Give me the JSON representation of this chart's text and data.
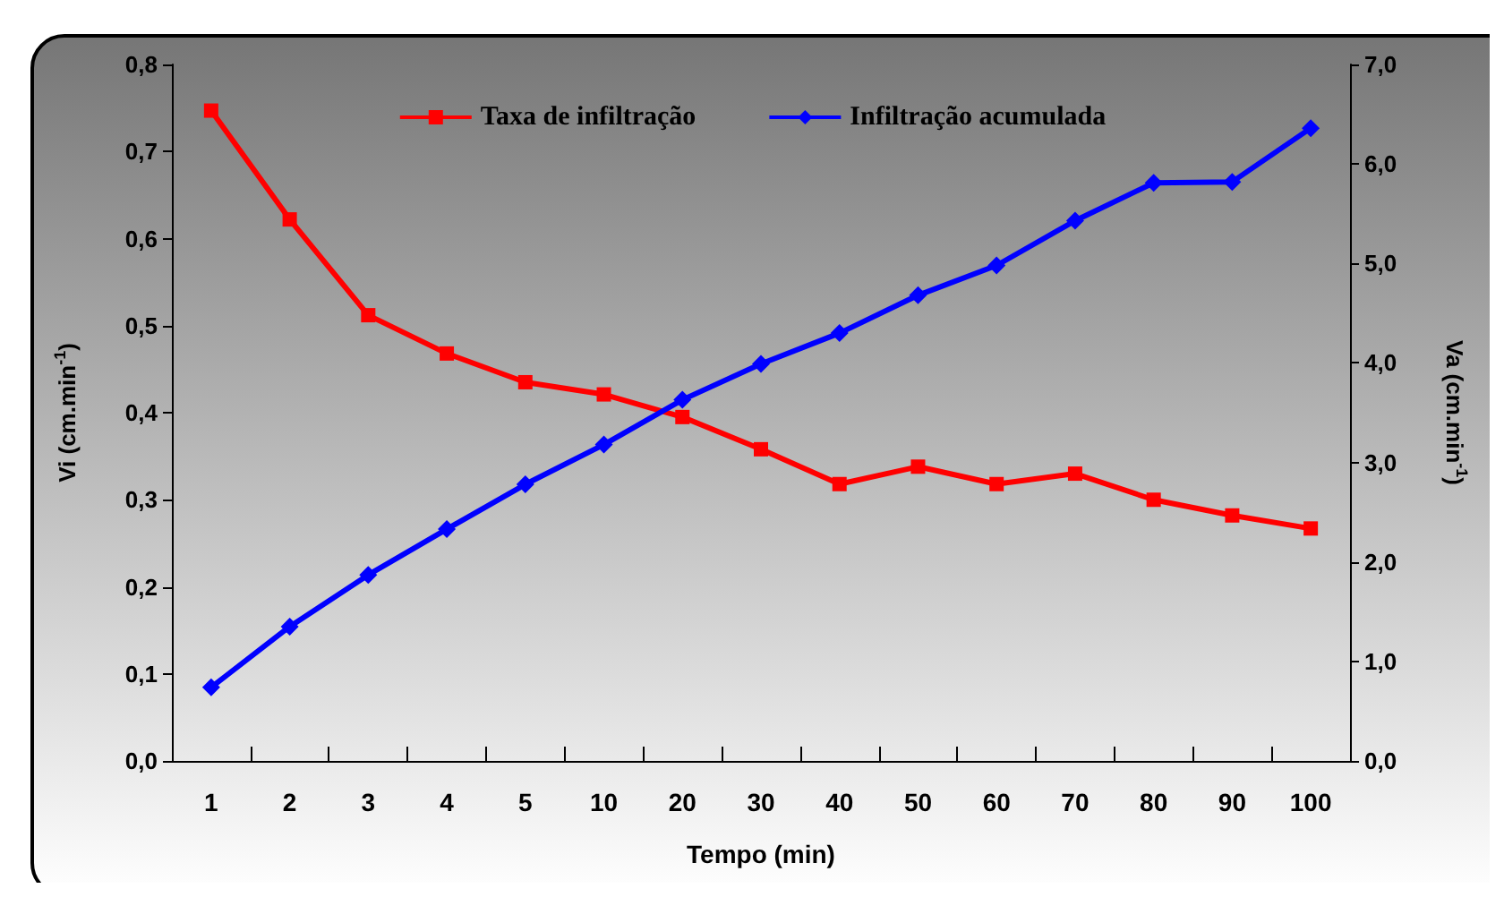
{
  "chart_data": {
    "type": "line",
    "xlabel": "Tempo (min)",
    "ylabel": "Vi (cm.min$^{-1}$)",
    "y2label": "Va (cm.min$^{-1}$)",
    "categories": [
      "1",
      "2",
      "3",
      "4",
      "5",
      "10",
      "20",
      "30",
      "40",
      "50",
      "60",
      "70",
      "80",
      "90",
      "100"
    ],
    "series": [
      {
        "name": "Taxa de infiltração",
        "color": "#ff0000",
        "marker": "square",
        "values": [
          0.747,
          0.622,
          0.512,
          0.468,
          0.435,
          0.421,
          0.395,
          0.358,
          0.318,
          0.338,
          0.318,
          0.33,
          0.3,
          0.282,
          0.267
        ]
      },
      {
        "name": "Infiltração acumulada",
        "color": "#0000ff",
        "marker": "diamond",
        "axis": "y2",
        "values": [
          0.74,
          1.35,
          1.87,
          2.33,
          2.78,
          3.18,
          3.63,
          3.99,
          4.3,
          4.68,
          4.98,
          5.43,
          5.81,
          5.82,
          6.36
        ]
      }
    ],
    "ylim": [
      0,
      0.8
    ],
    "yticks": [
      {
        "value": 0,
        "label": "0,0"
      },
      {
        "value": 0.1,
        "label": "0,1"
      },
      {
        "value": 0.2,
        "label": "0,2"
      },
      {
        "value": 0.3,
        "label": "0,3"
      },
      {
        "value": 0.4,
        "label": "0,4"
      },
      {
        "value": 0.5,
        "label": "0,5"
      },
      {
        "value": 0.6,
        "label": "0,6"
      },
      {
        "value": 0.7,
        "label": "0,7"
      },
      {
        "value": 0.8,
        "label": "0,8"
      }
    ],
    "y2lim": [
      0,
      7
    ],
    "y2ticks": [
      {
        "value": 0,
        "label": "0,0"
      },
      {
        "value": 1,
        "label": "1,0"
      },
      {
        "value": 2,
        "label": "2,0"
      },
      {
        "value": 3,
        "label": "3,0"
      },
      {
        "value": 4,
        "label": "4,0"
      },
      {
        "value": 5,
        "label": "5,0"
      },
      {
        "value": 6,
        "label": "6,0"
      },
      {
        "value": 7,
        "label": "7,0"
      }
    ],
    "grid": false,
    "legend": "top",
    "line_style": "solid"
  }
}
